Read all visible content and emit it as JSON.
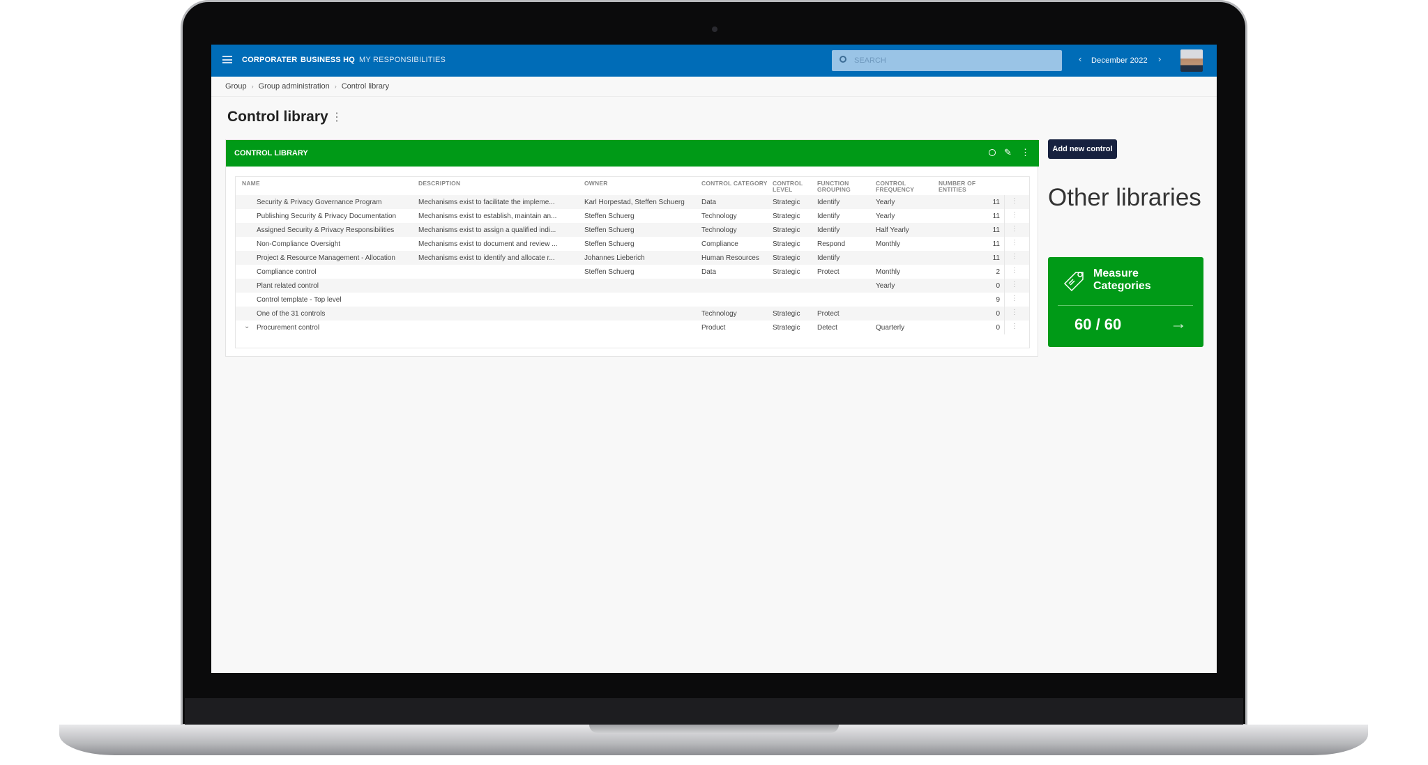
{
  "nav": {
    "brand": "CORPORATER",
    "items": [
      "BUSINESS HQ",
      "MY RESPONSIBILITIES"
    ],
    "search_placeholder": "SEARCH",
    "period": "December 2022"
  },
  "breadcrumb": [
    "Group",
    "Group administration",
    "Control library"
  ],
  "page_title": "Control library",
  "panel": {
    "title": "CONTROL LIBRARY"
  },
  "table": {
    "columns": [
      "NAME",
      "DESCRIPTION",
      "OWNER",
      "CONTROL CATEGORY",
      "CONTROL LEVEL",
      "FUNCTION GROUPING",
      "CONTROL FREQUENCY",
      "NUMBER OF ENTITIES"
    ],
    "rows": [
      [
        "Security & Privacy Governance Program",
        "Mechanisms exist to facilitate the impleme...",
        "Karl Horpestad, Steffen Schuerg",
        "Data",
        "Strategic",
        "Identify",
        "Yearly",
        "11"
      ],
      [
        "Publishing Security & Privacy Documentation",
        "Mechanisms exist to establish, maintain an...",
        "Steffen Schuerg",
        "Technology",
        "Strategic",
        "Identify",
        "Yearly",
        "11"
      ],
      [
        "Assigned Security & Privacy Responsibilities",
        "Mechanisms exist to assign a qualified indi...",
        "Steffen Schuerg",
        "Technology",
        "Strategic",
        "Identify",
        "Half Yearly",
        "11"
      ],
      [
        "Non-Compliance Oversight",
        "Mechanisms exist to document and review ...",
        "Steffen Schuerg",
        "Compliance",
        "Strategic",
        "Respond",
        "Monthly",
        "11"
      ],
      [
        "Project & Resource Management - Allocation",
        "Mechanisms exist to identify and allocate r...",
        "Johannes Lieberich",
        "Human Resources",
        "Strategic",
        "Identify",
        "",
        "11"
      ],
      [
        "Compliance control",
        "",
        "Steffen Schuerg",
        "Data",
        "Strategic",
        "Protect",
        "Monthly",
        "2"
      ],
      [
        "Plant related control",
        "",
        "",
        "",
        "",
        "",
        "Yearly",
        "0"
      ],
      [
        "Control template - Top level",
        "",
        "",
        "",
        "",
        "",
        "",
        "9"
      ],
      [
        "One of the 31 controls",
        "",
        "",
        "Technology",
        "Strategic",
        "Protect",
        "",
        "0"
      ],
      [
        "Procurement control",
        "",
        "",
        "Product",
        "Strategic",
        "Detect",
        "Quarterly",
        "0"
      ]
    ]
  },
  "add_button": "Add new control",
  "other_libraries": {
    "heading": "Other libraries",
    "card": {
      "title": "Measure Categories",
      "value": "60 / 60",
      "color": "#009a17"
    }
  },
  "colors": {
    "topbar": "#006cb7",
    "accent": "#009a17",
    "button": "#17213f"
  }
}
